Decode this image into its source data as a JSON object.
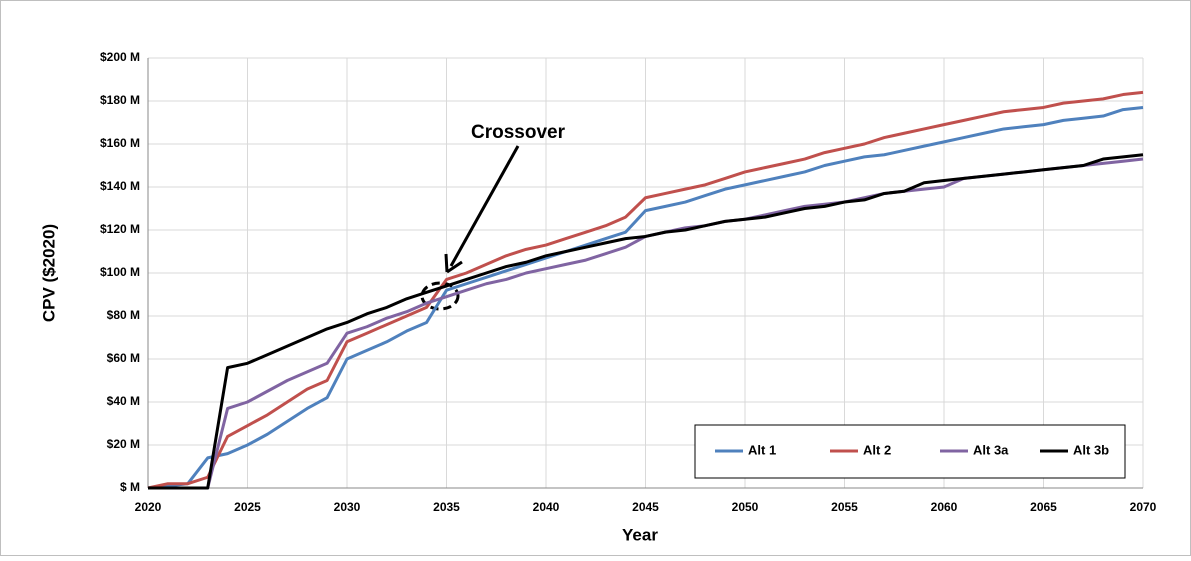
{
  "chart_data": {
    "type": "line",
    "ylabel": "CPV ($2020)",
    "xlabel": "Year",
    "annotation": "Crossover",
    "x": [
      2020,
      2021,
      2022,
      2023,
      2024,
      2025,
      2026,
      2027,
      2028,
      2029,
      2030,
      2031,
      2032,
      2033,
      2034,
      2035,
      2036,
      2037,
      2038,
      2039,
      2040,
      2041,
      2042,
      2043,
      2044,
      2045,
      2046,
      2047,
      2048,
      2049,
      2050,
      2051,
      2052,
      2053,
      2054,
      2055,
      2056,
      2057,
      2058,
      2059,
      2060,
      2061,
      2062,
      2063,
      2064,
      2065,
      2066,
      2067,
      2068,
      2069,
      2070
    ],
    "series": [
      {
        "name": "Alt 1",
        "color": "#4f81bd",
        "values": [
          0,
          1,
          2,
          14,
          16,
          20,
          25,
          31,
          37,
          42,
          60,
          64,
          68,
          73,
          77,
          92,
          95,
          98,
          101,
          104,
          107,
          110,
          113,
          116,
          119,
          129,
          131,
          133,
          136,
          139,
          141,
          143,
          145,
          147,
          150,
          152,
          154,
          155,
          157,
          159,
          161,
          163,
          165,
          167,
          168,
          169,
          171,
          172,
          173,
          176,
          177
        ]
      },
      {
        "name": "Alt 2",
        "color": "#c0504d",
        "values": [
          0,
          2,
          2,
          5,
          24,
          29,
          34,
          40,
          46,
          50,
          68,
          72,
          76,
          80,
          84,
          97,
          100,
          104,
          108,
          111,
          113,
          116,
          119,
          122,
          126,
          135,
          137,
          139,
          141,
          144,
          147,
          149,
          151,
          153,
          156,
          158,
          160,
          163,
          165,
          167,
          169,
          171,
          173,
          175,
          176,
          177,
          179,
          180,
          181,
          183,
          184
        ]
      },
      {
        "name": "Alt 3a",
        "color": "#8064a2",
        "values": [
          0,
          0,
          0,
          0,
          37,
          40,
          45,
          50,
          54,
          58,
          72,
          75,
          79,
          82,
          86,
          89,
          92,
          95,
          97,
          100,
          102,
          104,
          106,
          109,
          112,
          117,
          119,
          121,
          122,
          124,
          125,
          127,
          129,
          131,
          132,
          133,
          135,
          137,
          138,
          139,
          140,
          144,
          145,
          146,
          147,
          148,
          149,
          150,
          151,
          152,
          153
        ]
      },
      {
        "name": "Alt 3b",
        "color": "#000000",
        "values": [
          0,
          0,
          0,
          0,
          56,
          58,
          62,
          66,
          70,
          74,
          77,
          81,
          84,
          88,
          91,
          94,
          97,
          100,
          103,
          105,
          108,
          110,
          112,
          114,
          116,
          117,
          119,
          120,
          122,
          124,
          125,
          126,
          128,
          130,
          131,
          133,
          134,
          137,
          138,
          142,
          143,
          144,
          145,
          146,
          147,
          148,
          149,
          150,
          153,
          154,
          155
        ]
      }
    ],
    "xlim": [
      2020,
      2070
    ],
    "xticks": [
      2020,
      2025,
      2030,
      2035,
      2040,
      2045,
      2050,
      2055,
      2060,
      2065,
      2070
    ],
    "ylim": [
      0,
      200
    ],
    "yticks": [
      {
        "value": 0,
        "label": "$ M"
      },
      {
        "value": 20,
        "label": "$20 M"
      },
      {
        "value": 40,
        "label": "$40 M"
      },
      {
        "value": 60,
        "label": "$60 M"
      },
      {
        "value": 80,
        "label": "$80 M"
      },
      {
        "value": 100,
        "label": "$100 M"
      },
      {
        "value": 120,
        "label": "$120 M"
      },
      {
        "value": 140,
        "label": "$140 M"
      },
      {
        "value": 160,
        "label": "$160 M"
      },
      {
        "value": 180,
        "label": "$180 M"
      },
      {
        "value": 200,
        "label": "$200 M"
      }
    ],
    "grid": true,
    "legend": "lower right"
  }
}
